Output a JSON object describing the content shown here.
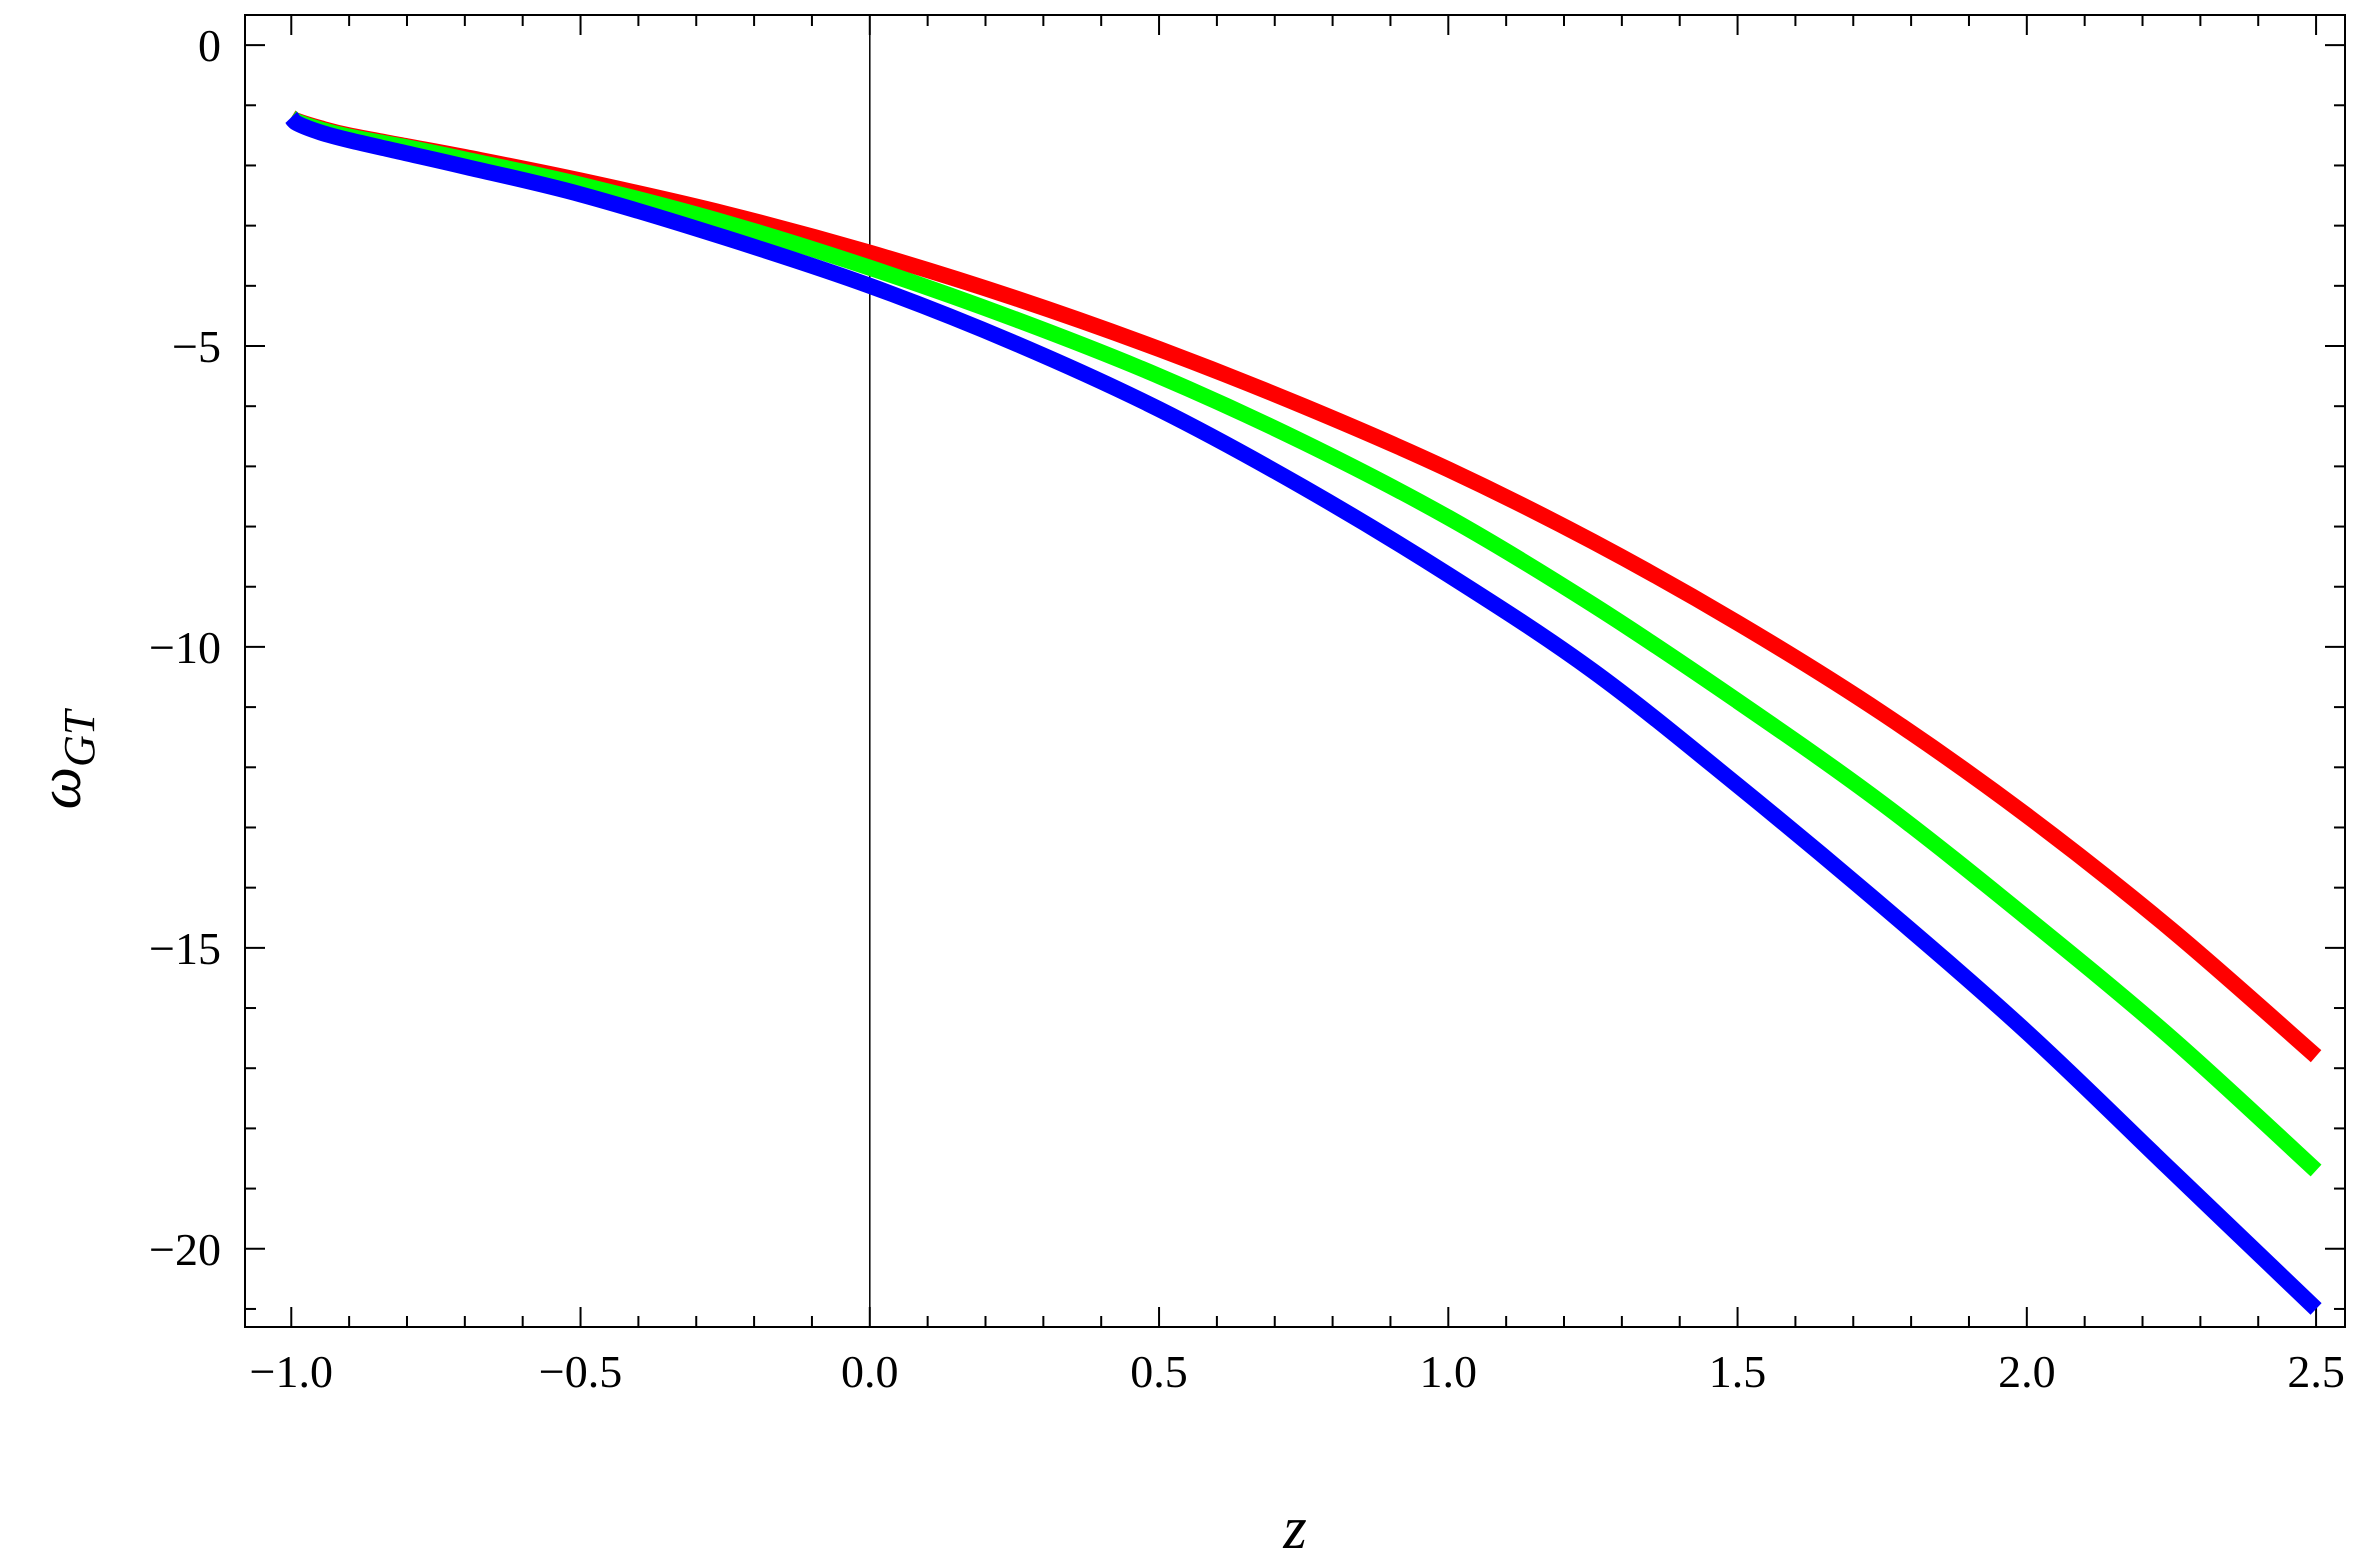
{
  "chart_data": {
    "type": "line",
    "title": "",
    "xlabel": "z",
    "ylabel": "ω",
    "ylabel_subscript": "GT",
    "xlim": [
      -1.08,
      2.55
    ],
    "ylim": [
      -21.3,
      0.5
    ],
    "grid": false,
    "legend": "none",
    "x_ticks": [
      {
        "value": -1.0,
        "label": "−1.0"
      },
      {
        "value": -0.5,
        "label": "−0.5"
      },
      {
        "value": 0.0,
        "label": "0.0"
      },
      {
        "value": 0.5,
        "label": "0.5"
      },
      {
        "value": 1.0,
        "label": "1.0"
      },
      {
        "value": 1.5,
        "label": "1.5"
      },
      {
        "value": 2.0,
        "label": "2.0"
      },
      {
        "value": 2.5,
        "label": "2.5"
      }
    ],
    "y_ticks": [
      {
        "value": 0,
        "label": "0"
      },
      {
        "value": -5,
        "label": "−5"
      },
      {
        "value": -10,
        "label": "−10"
      },
      {
        "value": -15,
        "label": "−15"
      },
      {
        "value": -20,
        "label": "−20"
      }
    ],
    "vertical_line_x": 0,
    "x": [
      -1.0,
      -0.99,
      -0.95,
      -0.9,
      -0.8,
      -0.7,
      -0.5,
      -0.25,
      0.0,
      0.25,
      0.5,
      0.75,
      1.0,
      1.25,
      1.5,
      1.75,
      2.0,
      2.25,
      2.5
    ],
    "series": [
      {
        "color": "#ff0000",
        "values": [
          -1.2,
          -1.26,
          -1.38,
          -1.5,
          -1.68,
          -1.86,
          -2.25,
          -2.8,
          -3.45,
          -4.2,
          -5.05,
          -6.0,
          -7.05,
          -8.25,
          -9.6,
          -11.1,
          -12.8,
          -14.7,
          -16.8
        ]
      },
      {
        "color": "#00ff00",
        "values": [
          -1.2,
          -1.27,
          -1.4,
          -1.52,
          -1.7,
          -1.9,
          -2.32,
          -2.95,
          -3.7,
          -4.55,
          -5.5,
          -6.6,
          -7.85,
          -9.3,
          -10.9,
          -12.6,
          -14.5,
          -16.5,
          -18.7
        ]
      },
      {
        "color": "#0000ff",
        "values": [
          -1.2,
          -1.3,
          -1.45,
          -1.58,
          -1.8,
          -2.02,
          -2.48,
          -3.2,
          -4.0,
          -4.95,
          -6.05,
          -7.35,
          -8.8,
          -10.4,
          -12.3,
          -14.3,
          -16.4,
          -18.7,
          -21.0
        ]
      }
    ]
  }
}
